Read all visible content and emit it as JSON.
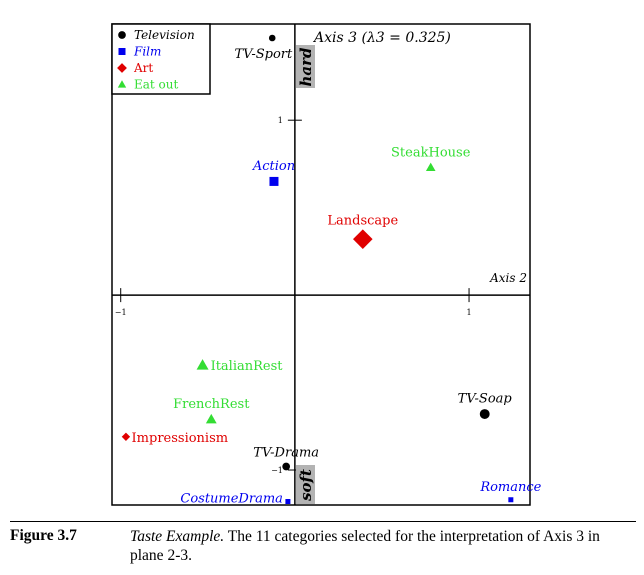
{
  "chart_data": {
    "type": "scatter",
    "title": "",
    "xlabel": "Axis 2",
    "ylabel": "Axis 3 (λ3 = 0.325)",
    "xlim": [
      -1.05,
      1.35
    ],
    "ylim": [
      -1.2,
      1.55
    ],
    "x_ticks": [
      {
        "value": -1,
        "label": "−1"
      },
      {
        "value": 1,
        "label": "1"
      }
    ],
    "y_ticks": [
      {
        "value": 1,
        "label": "1"
      },
      {
        "value": -1,
        "label": "−1"
      }
    ],
    "pole_top": "hard",
    "pole_bottom": "soft",
    "legend": {
      "placement": "top-left",
      "entries": [
        {
          "label": "Television",
          "color": "#000000",
          "marker": "circle",
          "italic": true
        },
        {
          "label": "Film",
          "color": "#0000ee",
          "marker": "square",
          "italic": true
        },
        {
          "label": "Art",
          "color": "#e00000",
          "marker": "diamond",
          "italic": false
        },
        {
          "label": "Eat out",
          "color": "#33dd33",
          "marker": "triangle",
          "italic": false
        }
      ]
    },
    "points": [
      {
        "label": "TV-Sport",
        "group": "Television",
        "x": -0.13,
        "y": 1.47,
        "label_pos": "below-left"
      },
      {
        "label": "TV-Soap",
        "group": "Television",
        "x": 1.09,
        "y": -0.68,
        "label_pos": "above"
      },
      {
        "label": "TV-Drama",
        "group": "Television",
        "x": -0.05,
        "y": -0.98,
        "label_pos": "above"
      },
      {
        "label": "Action",
        "group": "Film",
        "x": -0.12,
        "y": 0.65,
        "label_pos": "above"
      },
      {
        "label": "CostumeDrama",
        "group": "Film",
        "x": -0.04,
        "y": -1.18,
        "label_pos": "left"
      },
      {
        "label": "Romance",
        "group": "Film",
        "x": 1.24,
        "y": -1.17,
        "label_pos": "above"
      },
      {
        "label": "Landscape",
        "group": "Art",
        "x": 0.39,
        "y": 0.32,
        "label_pos": "above"
      },
      {
        "label": "Impressionism",
        "group": "Art",
        "x": -0.97,
        "y": -0.81,
        "label_pos": "right"
      },
      {
        "label": "SteakHouse",
        "group": "Eat out",
        "x": 0.78,
        "y": 0.73,
        "label_pos": "above"
      },
      {
        "label": "ItalianRest",
        "group": "Eat out",
        "x": -0.53,
        "y": -0.4,
        "label_pos": "right"
      },
      {
        "label": "FrenchRest",
        "group": "Eat out",
        "x": -0.48,
        "y": -0.71,
        "label_pos": "above"
      }
    ]
  },
  "caption": {
    "label": "Figure 3.7",
    "title": "Taste Example.",
    "text": "The 11 categories selected for the interpretation of Axis 3 in plane 2-3."
  }
}
